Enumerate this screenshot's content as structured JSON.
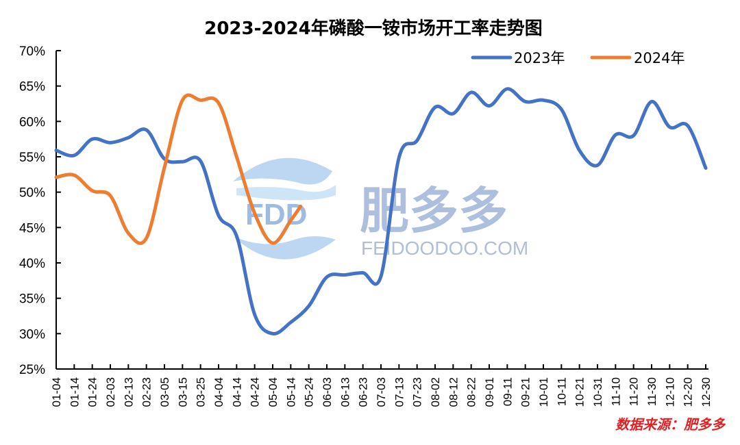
{
  "chart_data": {
    "type": "line",
    "title": "2023-2024年磷酸一铵市场开工率走势图",
    "xlabel": "",
    "ylabel": "",
    "ylim": [
      25,
      70
    ],
    "yticks": [
      "25%",
      "30%",
      "35%",
      "40%",
      "45%",
      "50%",
      "55%",
      "60%",
      "65%",
      "70%"
    ],
    "grid": false,
    "legend_position": "top-right",
    "categories": [
      "01-04",
      "01-14",
      "01-24",
      "02-03",
      "02-13",
      "02-23",
      "03-05",
      "03-15",
      "03-25",
      "04-04",
      "04-14",
      "04-24",
      "05-04",
      "05-14",
      "05-24",
      "06-03",
      "06-13",
      "06-23",
      "07-03",
      "07-13",
      "07-23",
      "08-02",
      "08-12",
      "08-22",
      "09-01",
      "09-11",
      "09-21",
      "10-01",
      "10-11",
      "10-21",
      "10-31",
      "11-10",
      "11-20",
      "11-30",
      "12-10",
      "12-20",
      "12-30"
    ],
    "series": [
      {
        "name": "2023年",
        "color": "#4472c4",
        "values": [
          55.9,
          55.2,
          57.5,
          57.0,
          57.7,
          58.8,
          54.7,
          54.3,
          54.4,
          46.7,
          43.8,
          32.7,
          30.0,
          31.6,
          33.9,
          38.0,
          38.3,
          38.6,
          38.1,
          54.9,
          57.3,
          62.0,
          61.1,
          64.1,
          62.2,
          64.6,
          62.8,
          63.0,
          61.7,
          55.9,
          53.8,
          58.1,
          58.0,
          62.8,
          59.2,
          59.4,
          53.4
        ]
      },
      {
        "name": "2024年",
        "color": "#ed7d31",
        "values": [
          52.1,
          52.4,
          50.2,
          49.5,
          44.2,
          43.5,
          53.5,
          63.0,
          63.0,
          62.6,
          55.0,
          47.0,
          42.8,
          46.0,
          48.0
        ]
      }
    ],
    "annotations": [
      "数据来源：肥多多"
    ]
  },
  "watermark": {
    "logo_text": "FDD",
    "brand_cn": "肥多多",
    "brand_url": "FEIDOODOO.COM"
  },
  "source_note": "数据来源：肥多多"
}
